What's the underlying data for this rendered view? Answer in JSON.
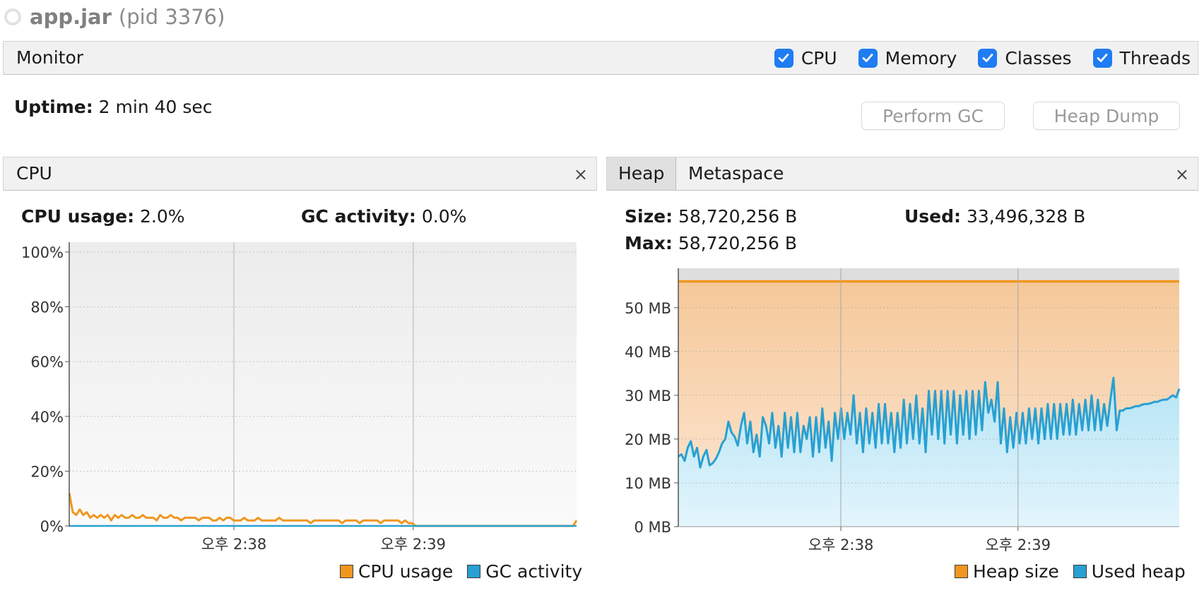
{
  "window": {
    "app_name": "app.jar",
    "pid_text": "(pid 3376)"
  },
  "monitor": {
    "title": "Monitor",
    "checkboxes": [
      {
        "label": "CPU",
        "checked": true
      },
      {
        "label": "Memory",
        "checked": true
      },
      {
        "label": "Classes",
        "checked": true
      },
      {
        "label": "Threads",
        "checked": true
      }
    ],
    "uptime_label": "Uptime:",
    "uptime_value": "2 min 40 sec",
    "perform_gc_label": "Perform GC",
    "heap_dump_label": "Heap Dump"
  },
  "cpu_panel": {
    "tab_label": "CPU",
    "close_glyph": "×",
    "cpu_usage_label": "CPU usage:",
    "cpu_usage_value": "2.0%",
    "gc_activity_label": "GC activity:",
    "gc_activity_value": "0.0%"
  },
  "heap_panel": {
    "tabs": [
      "Heap",
      "Metaspace"
    ],
    "close_glyph": "×",
    "size_label": "Size:",
    "size_value": "58,720,256 B",
    "used_label": "Used:",
    "used_value": "33,496,328 B",
    "max_label": "Max:",
    "max_value": "58,720,256 B"
  },
  "colors": {
    "cpu_line": "#f0961e",
    "gc_line": "#28a0d2",
    "heap_size": "#f0961e",
    "used_heap": "#28a0d2",
    "checkbox": "#1f7cf2"
  },
  "chart_data": [
    {
      "type": "line",
      "title": "",
      "ylim": [
        0,
        100
      ],
      "y_ticks": [
        "100%",
        "80%",
        "60%",
        "40%",
        "20%",
        "0%"
      ],
      "x_tick_labels": [
        "오후 2:38",
        "오후 2:39"
      ],
      "grid": true,
      "legend": "bottom-right",
      "series": [
        {
          "name": "CPU usage",
          "color": "#f0961e",
          "values": [
            12,
            5,
            4,
            6,
            4,
            5,
            3,
            4,
            3,
            4,
            3,
            4,
            2,
            4,
            3,
            4,
            3,
            3,
            4,
            3,
            3,
            4,
            3,
            3,
            3,
            2,
            4,
            3,
            3,
            4,
            3,
            3,
            2,
            3,
            3,
            3,
            3,
            2,
            3,
            3,
            3,
            2,
            2,
            3,
            2,
            3,
            3,
            2,
            2,
            2,
            3,
            2,
            2,
            2,
            3,
            2,
            2,
            2,
            2,
            2,
            3,
            2,
            2,
            2,
            2,
            2,
            2,
            2,
            2,
            1,
            2,
            2,
            2,
            2,
            2,
            2,
            2,
            2,
            1,
            2,
            2,
            2,
            2,
            1,
            2,
            2,
            2,
            2,
            2,
            1,
            2,
            2,
            2,
            2,
            2,
            1,
            2,
            1,
            1,
            0,
            0,
            0,
            0,
            0,
            0,
            0,
            0,
            0,
            0,
            0,
            0,
            0,
            0,
            0,
            0,
            0,
            0,
            0,
            0,
            0,
            0,
            0,
            0,
            0,
            0,
            0,
            0,
            0,
            0,
            0,
            0,
            0,
            0,
            0,
            0,
            0,
            0,
            0,
            0,
            0,
            0,
            0,
            0,
            0,
            0,
            2
          ]
        },
        {
          "name": "GC activity",
          "color": "#28a0d2",
          "values": [
            0,
            0,
            0,
            0,
            0,
            0,
            0,
            0,
            0,
            0,
            0,
            0,
            0,
            0,
            0,
            0,
            0,
            0,
            0,
            0
          ]
        }
      ]
    },
    {
      "type": "area",
      "title": "",
      "ylim": [
        0,
        59
      ],
      "y_ticks": [
        "50 MB",
        "40 MB",
        "30 MB",
        "20 MB",
        "10 MB",
        "0 MB"
      ],
      "x_tick_labels": [
        "오후 2:38",
        "오후 2:39"
      ],
      "grid": true,
      "legend": "bottom-right",
      "series": [
        {
          "name": "Heap size",
          "color": "#f0961e",
          "values": [
            56
          ]
        },
        {
          "name": "Used heap",
          "color": "#28a0d2",
          "values": [
            16,
            16.5,
            15,
            18,
            19.5,
            16,
            18,
            13.5,
            16,
            17.5,
            14,
            14.5,
            15.5,
            17,
            19,
            20,
            24,
            21.5,
            20.5,
            18.5,
            23,
            26,
            19,
            24,
            17,
            21,
            16,
            25,
            23,
            19,
            26,
            18,
            23,
            16,
            26,
            18,
            25,
            17,
            26,
            17,
            23,
            20,
            25,
            16,
            25,
            17,
            27,
            18,
            24,
            15,
            26,
            20,
            27,
            20,
            26,
            21,
            30,
            19,
            26,
            17,
            27,
            19,
            26,
            18,
            28,
            19,
            28,
            19,
            26,
            17,
            26,
            18,
            29,
            19,
            28,
            20,
            30,
            19,
            27,
            17,
            31,
            21,
            31,
            20,
            31,
            19,
            31,
            21,
            31,
            19,
            30,
            21,
            31,
            20,
            31,
            21,
            31,
            22,
            33,
            26,
            29,
            24,
            33,
            19,
            27,
            17,
            25,
            18,
            26,
            19,
            26,
            19,
            27,
            20,
            27,
            19,
            27,
            20,
            28,
            20,
            28,
            20,
            28,
            21,
            28,
            21,
            29,
            21,
            28,
            22,
            29,
            22,
            30,
            22,
            29,
            22,
            28,
            23,
            29,
            34,
            22,
            26.5,
            26.5,
            27,
            27,
            27.2,
            27.5,
            27.5,
            27.8,
            28,
            28,
            28.2,
            28.5,
            28.5,
            28.8,
            29,
            29,
            29.5,
            30,
            29.5,
            31.5
          ]
        }
      ]
    }
  ],
  "cpu_legend": [
    "CPU usage",
    "GC activity"
  ],
  "heap_legend": [
    "Heap size",
    "Used heap"
  ]
}
